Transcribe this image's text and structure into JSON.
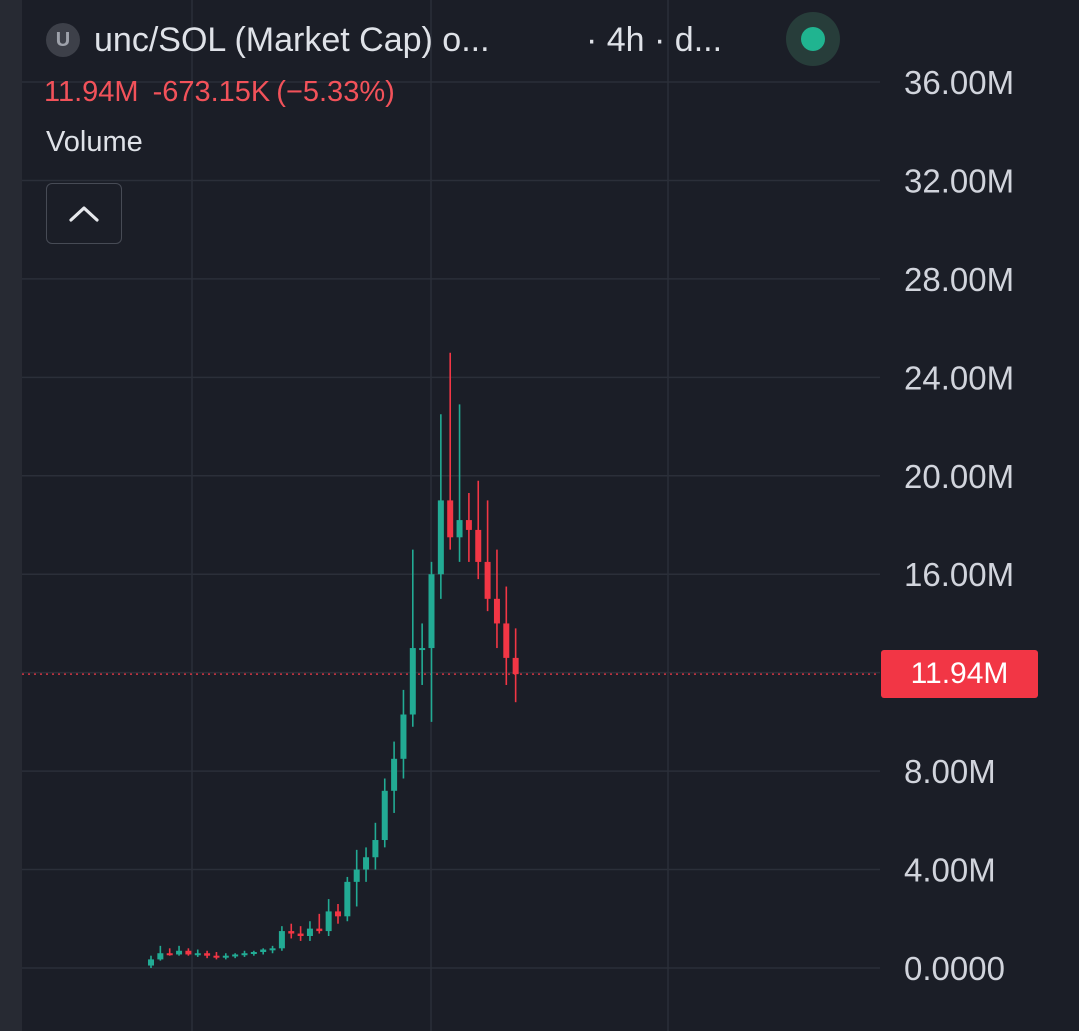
{
  "header": {
    "symbol_icon_letter": "U",
    "title": "unc/SOL (Market Cap) o...",
    "interval": "· 4h · d..."
  },
  "ohlc": {
    "last": "11.94M",
    "change": "-673.15K",
    "change_pct": "(−5.33%)",
    "color": "#f2525a"
  },
  "volume_label": "Volume",
  "collapse_icon": "chevron-up-icon",
  "status_color": "#20b490",
  "price_label": "11.94M",
  "colors": {
    "up": "#22ab94",
    "down": "#f23645",
    "background": "#1b1e27",
    "grid": "#2b2f39",
    "axis_text": "#d1d4dc"
  },
  "chart_data": {
    "type": "candlestick",
    "y_axis": {
      "ticks": [
        0,
        4,
        8,
        16,
        20,
        24,
        28,
        32,
        36
      ],
      "tick_labels": [
        "0.0000",
        "4.00M",
        "8.00M",
        "16.00M",
        "20.00M",
        "24.00M",
        "28.00M",
        "32.00M",
        "36.00M"
      ],
      "range": [
        0,
        36
      ],
      "unit": "M"
    },
    "last_price": 11.94,
    "grid": true,
    "candles": [
      {
        "o": 0.1,
        "h": 0.5,
        "l": 0.0,
        "c": 0.35
      },
      {
        "o": 0.35,
        "h": 0.9,
        "l": 0.3,
        "c": 0.6
      },
      {
        "o": 0.6,
        "h": 0.8,
        "l": 0.5,
        "c": 0.55
      },
      {
        "o": 0.55,
        "h": 0.9,
        "l": 0.5,
        "c": 0.7
      },
      {
        "o": 0.7,
        "h": 0.8,
        "l": 0.5,
        "c": 0.55
      },
      {
        "o": 0.55,
        "h": 0.75,
        "l": 0.45,
        "c": 0.6
      },
      {
        "o": 0.6,
        "h": 0.7,
        "l": 0.4,
        "c": 0.5
      },
      {
        "o": 0.5,
        "h": 0.65,
        "l": 0.35,
        "c": 0.45
      },
      {
        "o": 0.45,
        "h": 0.6,
        "l": 0.35,
        "c": 0.5
      },
      {
        "o": 0.5,
        "h": 0.6,
        "l": 0.4,
        "c": 0.55
      },
      {
        "o": 0.55,
        "h": 0.7,
        "l": 0.45,
        "c": 0.6
      },
      {
        "o": 0.6,
        "h": 0.7,
        "l": 0.5,
        "c": 0.65
      },
      {
        "o": 0.65,
        "h": 0.8,
        "l": 0.55,
        "c": 0.75
      },
      {
        "o": 0.75,
        "h": 0.9,
        "l": 0.6,
        "c": 0.8
      },
      {
        "o": 0.8,
        "h": 1.7,
        "l": 0.7,
        "c": 1.5
      },
      {
        "o": 1.5,
        "h": 1.8,
        "l": 1.2,
        "c": 1.4
      },
      {
        "o": 1.4,
        "h": 1.7,
        "l": 1.1,
        "c": 1.3
      },
      {
        "o": 1.3,
        "h": 1.9,
        "l": 1.1,
        "c": 1.6
      },
      {
        "o": 1.6,
        "h": 2.2,
        "l": 1.4,
        "c": 1.5
      },
      {
        "o": 1.5,
        "h": 2.8,
        "l": 1.3,
        "c": 2.3
      },
      {
        "o": 2.3,
        "h": 2.6,
        "l": 1.8,
        "c": 2.1
      },
      {
        "o": 2.1,
        "h": 3.7,
        "l": 1.9,
        "c": 3.5
      },
      {
        "o": 3.5,
        "h": 4.8,
        "l": 2.5,
        "c": 4.0
      },
      {
        "o": 4.0,
        "h": 4.9,
        "l": 3.5,
        "c": 4.5
      },
      {
        "o": 4.5,
        "h": 5.9,
        "l": 4.0,
        "c": 5.2
      },
      {
        "o": 5.2,
        "h": 7.7,
        "l": 4.9,
        "c": 7.2
      },
      {
        "o": 7.2,
        "h": 9.2,
        "l": 6.3,
        "c": 8.5
      },
      {
        "o": 8.5,
        "h": 11.3,
        "l": 7.7,
        "c": 10.3
      },
      {
        "o": 10.3,
        "h": 17.0,
        "l": 9.8,
        "c": 13.0
      },
      {
        "o": 13.0,
        "h": 14.0,
        "l": 11.5,
        "c": 13.0
      },
      {
        "o": 13.0,
        "h": 16.5,
        "l": 10.0,
        "c": 16.0
      },
      {
        "o": 16.0,
        "h": 22.5,
        "l": 15.0,
        "c": 19.0
      },
      {
        "o": 19.0,
        "h": 25.0,
        "l": 17.0,
        "c": 17.5
      },
      {
        "o": 17.5,
        "h": 22.9,
        "l": 16.5,
        "c": 18.2
      },
      {
        "o": 18.2,
        "h": 19.3,
        "l": 16.5,
        "c": 17.8
      },
      {
        "o": 17.8,
        "h": 19.8,
        "l": 15.8,
        "c": 16.5
      },
      {
        "o": 16.5,
        "h": 19.0,
        "l": 14.5,
        "c": 15.0
      },
      {
        "o": 15.0,
        "h": 17.0,
        "l": 13.0,
        "c": 14.0
      },
      {
        "o": 14.0,
        "h": 15.5,
        "l": 11.5,
        "c": 12.6
      },
      {
        "o": 12.6,
        "h": 13.8,
        "l": 10.8,
        "c": 11.94
      }
    ]
  }
}
